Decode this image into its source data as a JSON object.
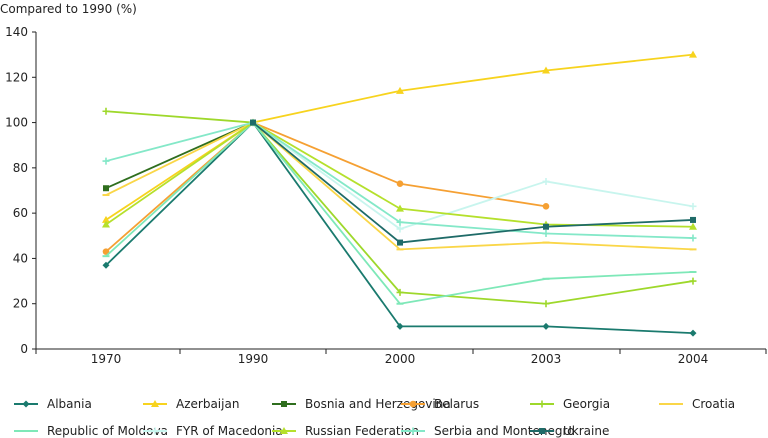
{
  "chart_data": {
    "type": "line",
    "title": "",
    "ylabel": "Compared to 1990 (%)",
    "xlabel": "",
    "categories": [
      "1970",
      "1990",
      "2000",
      "2003",
      "2004"
    ],
    "yticks": [
      "0",
      "20",
      "40",
      "60",
      "80",
      "100",
      "120",
      "140"
    ],
    "ylim": [
      0,
      140
    ],
    "grid": false,
    "legend": "bottom",
    "series": [
      {
        "name": "Albania",
        "color": "#1a7a6e",
        "marker": "diamond",
        "values": [
          37,
          100,
          10,
          10,
          7
        ]
      },
      {
        "name": "Azerbaijan",
        "color": "#f7d31e",
        "marker": "triangle",
        "values": [
          57,
          100,
          114,
          123,
          130
        ]
      },
      {
        "name": "Bosnia and Herzegovina",
        "color": "#2f6e1e",
        "marker": "square",
        "values": [
          71,
          100,
          null,
          null,
          null
        ]
      },
      {
        "name": "Belarus",
        "color": "#f5a033",
        "marker": "circle",
        "values": [
          43,
          100,
          73,
          63,
          null
        ]
      },
      {
        "name": "Georgia",
        "color": "#9ed82b",
        "marker": "cross",
        "values": [
          105,
          100,
          25,
          20,
          30
        ]
      },
      {
        "name": "Croatia",
        "color": "#fad648",
        "marker": "line",
        "values": [
          68,
          100,
          44,
          47,
          44
        ]
      },
      {
        "name": "Republic of Moldova",
        "color": "#7ee8b8",
        "marker": "line",
        "values": [
          41,
          100,
          20,
          31,
          34
        ]
      },
      {
        "name": "FYR of Macedonia",
        "color": "#c8f5ee",
        "marker": "cross",
        "values": [
          null,
          100,
          53,
          74,
          63
        ]
      },
      {
        "name": "Russian Federation",
        "color": "#b5e02c",
        "marker": "triangle",
        "values": [
          55,
          100,
          62,
          55,
          54
        ]
      },
      {
        "name": "Serbia and Montenegro",
        "color": "#84e8c8",
        "marker": "cross",
        "values": [
          83,
          100,
          56,
          51,
          49
        ]
      },
      {
        "name": "Ukraine",
        "color": "#1f6b68",
        "marker": "square",
        "values": [
          null,
          100,
          47,
          54,
          57
        ]
      }
    ]
  }
}
